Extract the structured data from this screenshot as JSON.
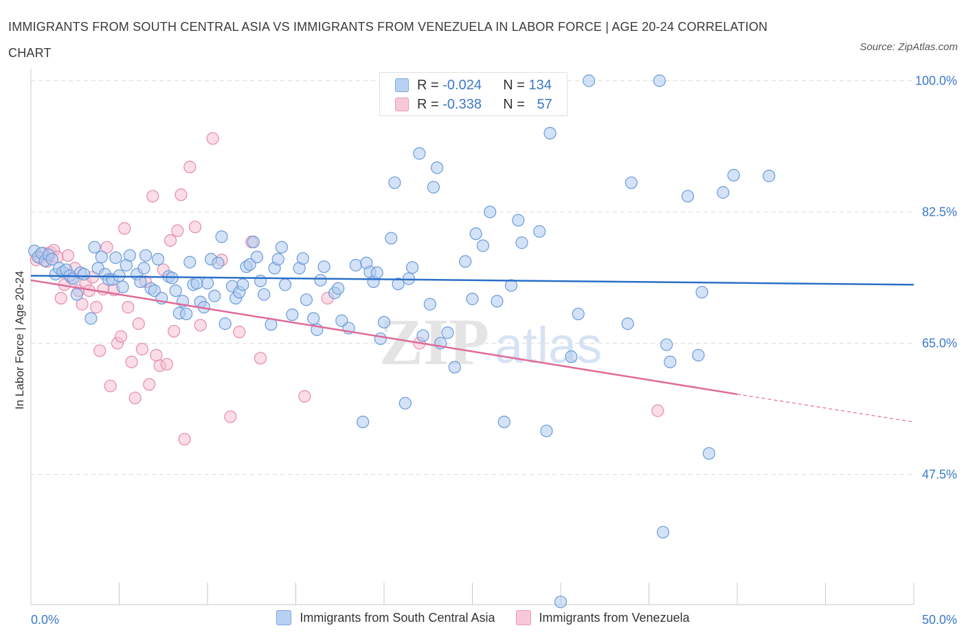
{
  "title": "IMMIGRANTS FROM SOUTH CENTRAL ASIA VS IMMIGRANTS FROM VENEZUELA IN LABOR FORCE | AGE 20-24 CORRELATION CHART",
  "source": "Source: ZipAtlas.com",
  "watermark": {
    "zip": "ZIP",
    "atlas": "atlas"
  },
  "legend": {
    "r_label": "R =",
    "n_label": "N =",
    "blue": {
      "r": "-0.024",
      "n": "134"
    },
    "pink": {
      "r": "-0.338",
      "n": "57"
    }
  },
  "colors": {
    "blue_fill": "#aecbf0",
    "blue_stroke": "#6a9ad8",
    "blue_line": "#2a6fc9",
    "pink_fill": "#f6c1d2",
    "pink_stroke": "#e58aa9",
    "pink_line": "#e06a98",
    "tick_label": "#3a78c8"
  },
  "chart_data": {
    "type": "scatter",
    "title": "IMMIGRANTS FROM SOUTH CENTRAL ASIA VS IMMIGRANTS FROM VENEZUELA IN LABOR FORCE | AGE 20-24 CORRELATION CHART",
    "xlabel": "",
    "ylabel": "In Labor Force | Age 20-24",
    "xlim": [
      0,
      50
    ],
    "ylim": [
      32.5,
      102
    ],
    "x_tick_labels": [
      "0.0%",
      "50.0%"
    ],
    "y_ticks": [
      47.5,
      65.0,
      82.5,
      100.0
    ],
    "y_tick_labels": [
      "47.5%",
      "65.0%",
      "82.5%",
      "100.0%"
    ],
    "grid": true,
    "legend_position": "top-center",
    "series": [
      {
        "name": "Immigrants from South Central Asia",
        "color": "blue",
        "trend": {
          "x0": 0,
          "y0": 74.0,
          "x1": 50,
          "y1": 72.8
        },
        "points": [
          [
            0.2,
            77.3
          ],
          [
            0.4,
            76.5
          ],
          [
            0.6,
            77.0
          ],
          [
            0.8,
            76.0
          ],
          [
            1.0,
            76.8
          ],
          [
            1.2,
            76.2
          ],
          [
            1.4,
            74.2
          ],
          [
            1.6,
            75.0
          ],
          [
            1.8,
            74.5
          ],
          [
            2.0,
            74.8
          ],
          [
            2.2,
            74.0
          ],
          [
            2.4,
            73.6
          ],
          [
            2.6,
            71.5
          ],
          [
            2.8,
            74.4
          ],
          [
            3.0,
            74.2
          ],
          [
            3.4,
            68.3
          ],
          [
            3.6,
            77.8
          ],
          [
            3.8,
            75.0
          ],
          [
            4.0,
            76.5
          ],
          [
            4.2,
            74.2
          ],
          [
            4.4,
            73.5
          ],
          [
            4.6,
            73.5
          ],
          [
            4.8,
            76.4
          ],
          [
            5.0,
            74.0
          ],
          [
            5.2,
            72.5
          ],
          [
            5.4,
            75.4
          ],
          [
            5.6,
            76.7
          ],
          [
            6.0,
            74.2
          ],
          [
            6.2,
            73.2
          ],
          [
            6.4,
            75.0
          ],
          [
            6.5,
            76.7
          ],
          [
            6.8,
            72.3
          ],
          [
            7.0,
            72.0
          ],
          [
            7.2,
            76.2
          ],
          [
            7.4,
            71.0
          ],
          [
            7.8,
            73.9
          ],
          [
            8.0,
            73.7
          ],
          [
            8.2,
            72.0
          ],
          [
            8.4,
            69.0
          ],
          [
            8.6,
            70.6
          ],
          [
            8.8,
            68.9
          ],
          [
            9.0,
            75.8
          ],
          [
            9.2,
            72.8
          ],
          [
            9.4,
            73.0
          ],
          [
            9.6,
            70.5
          ],
          [
            9.8,
            69.8
          ],
          [
            10.0,
            73.0
          ],
          [
            10.2,
            76.2
          ],
          [
            10.4,
            71.3
          ],
          [
            10.6,
            75.7
          ],
          [
            10.8,
            79.2
          ],
          [
            11.0,
            67.6
          ],
          [
            11.4,
            72.6
          ],
          [
            11.6,
            71.0
          ],
          [
            11.8,
            71.8
          ],
          [
            12.0,
            72.8
          ],
          [
            12.2,
            75.2
          ],
          [
            12.4,
            75.5
          ],
          [
            12.6,
            78.5
          ],
          [
            12.8,
            76.5
          ],
          [
            13.0,
            73.3
          ],
          [
            13.2,
            71.5
          ],
          [
            13.6,
            67.5
          ],
          [
            13.8,
            75.0
          ],
          [
            14.0,
            76.2
          ],
          [
            14.2,
            77.8
          ],
          [
            14.4,
            72.8
          ],
          [
            14.8,
            68.8
          ],
          [
            15.2,
            75.0
          ],
          [
            15.4,
            76.3
          ],
          [
            15.6,
            70.8
          ],
          [
            16.0,
            68.3
          ],
          [
            16.2,
            66.8
          ],
          [
            16.4,
            73.4
          ],
          [
            16.6,
            75.2
          ],
          [
            17.2,
            71.7
          ],
          [
            17.4,
            72.3
          ],
          [
            17.6,
            68.0
          ],
          [
            18.0,
            67.0
          ],
          [
            18.4,
            75.4
          ],
          [
            18.8,
            54.5
          ],
          [
            19.0,
            75.7
          ],
          [
            19.2,
            74.5
          ],
          [
            19.4,
            73.2
          ],
          [
            19.6,
            74.4
          ],
          [
            19.8,
            65.6
          ],
          [
            20.0,
            67.8
          ],
          [
            20.4,
            79.0
          ],
          [
            20.6,
            86.4
          ],
          [
            20.8,
            72.9
          ],
          [
            21.2,
            57.0
          ],
          [
            21.4,
            73.6
          ],
          [
            21.6,
            75.1
          ],
          [
            22.0,
            90.3
          ],
          [
            22.2,
            66.0
          ],
          [
            22.6,
            70.2
          ],
          [
            22.8,
            85.8
          ],
          [
            23.0,
            88.4
          ],
          [
            23.2,
            65.0
          ],
          [
            23.6,
            66.4
          ],
          [
            24.0,
            61.8
          ],
          [
            24.6,
            75.9
          ],
          [
            25.0,
            70.9
          ],
          [
            25.2,
            79.6
          ],
          [
            25.6,
            78.0
          ],
          [
            26.0,
            82.5
          ],
          [
            26.4,
            70.6
          ],
          [
            26.8,
            54.5
          ],
          [
            27.2,
            72.7
          ],
          [
            27.6,
            81.4
          ],
          [
            27.8,
            78.4
          ],
          [
            28.4,
            100.0
          ],
          [
            28.8,
            79.9
          ],
          [
            29.2,
            53.3
          ],
          [
            29.4,
            93.0
          ],
          [
            30.0,
            30.5
          ],
          [
            30.6,
            63.2
          ],
          [
            31.0,
            68.9
          ],
          [
            31.6,
            100.0
          ],
          [
            33.8,
            67.6
          ],
          [
            34.0,
            86.4
          ],
          [
            35.6,
            100.0
          ],
          [
            35.8,
            39.8
          ],
          [
            36.0,
            64.8
          ],
          [
            36.2,
            62.5
          ],
          [
            37.2,
            84.6
          ],
          [
            37.8,
            63.4
          ],
          [
            38.0,
            71.8
          ],
          [
            38.4,
            50.3
          ],
          [
            39.2,
            85.1
          ],
          [
            39.8,
            87.4
          ],
          [
            41.8,
            87.3
          ]
        ]
      },
      {
        "name": "Immigrants from Venezuela",
        "color": "pink",
        "trend": {
          "x0": 0,
          "y0": 73.4,
          "x1": 40,
          "y1": 58.2,
          "dashed_to": {
            "x": 50,
            "y": 54.5
          }
        },
        "points": [
          [
            0.3,
            76.1
          ],
          [
            0.5,
            76.4
          ],
          [
            0.7,
            77.0
          ],
          [
            0.9,
            75.9
          ],
          [
            1.0,
            76.6
          ],
          [
            1.1,
            77.1
          ],
          [
            1.3,
            77.4
          ],
          [
            1.5,
            76.5
          ],
          [
            1.7,
            71.0
          ],
          [
            1.9,
            72.8
          ],
          [
            2.1,
            76.7
          ],
          [
            2.3,
            73.7
          ],
          [
            2.5,
            75.0
          ],
          [
            2.7,
            72.0
          ],
          [
            2.9,
            70.2
          ],
          [
            3.1,
            73.0
          ],
          [
            3.3,
            72.0
          ],
          [
            3.5,
            73.8
          ],
          [
            3.7,
            69.8
          ],
          [
            3.9,
            64.0
          ],
          [
            4.1,
            72.2
          ],
          [
            4.3,
            77.8
          ],
          [
            4.5,
            59.3
          ],
          [
            4.7,
            72.1
          ],
          [
            4.9,
            65.0
          ],
          [
            5.1,
            65.9
          ],
          [
            5.3,
            80.3
          ],
          [
            5.5,
            69.8
          ],
          [
            5.7,
            62.5
          ],
          [
            5.9,
            57.7
          ],
          [
            6.1,
            67.6
          ],
          [
            6.3,
            64.2
          ],
          [
            6.5,
            73.2
          ],
          [
            6.7,
            59.5
          ],
          [
            6.9,
            84.6
          ],
          [
            7.1,
            63.4
          ],
          [
            7.3,
            62.0
          ],
          [
            7.5,
            74.8
          ],
          [
            7.7,
            62.2
          ],
          [
            7.9,
            78.7
          ],
          [
            8.1,
            66.6
          ],
          [
            8.3,
            80.0
          ],
          [
            8.5,
            84.8
          ],
          [
            8.7,
            52.2
          ],
          [
            9.0,
            88.5
          ],
          [
            9.3,
            80.5
          ],
          [
            9.6,
            67.4
          ],
          [
            10.3,
            92.3
          ],
          [
            10.8,
            76.1
          ],
          [
            11.3,
            55.2
          ],
          [
            11.8,
            66.5
          ],
          [
            12.5,
            78.5
          ],
          [
            13.0,
            63.0
          ],
          [
            15.5,
            57.9
          ],
          [
            16.8,
            71.0
          ],
          [
            22.0,
            65.0
          ],
          [
            35.5,
            56.0
          ]
        ]
      }
    ]
  },
  "bottom_legend": {
    "blue_label": "Immigrants from South Central Asia",
    "pink_label": "Immigrants from Venezuela"
  }
}
